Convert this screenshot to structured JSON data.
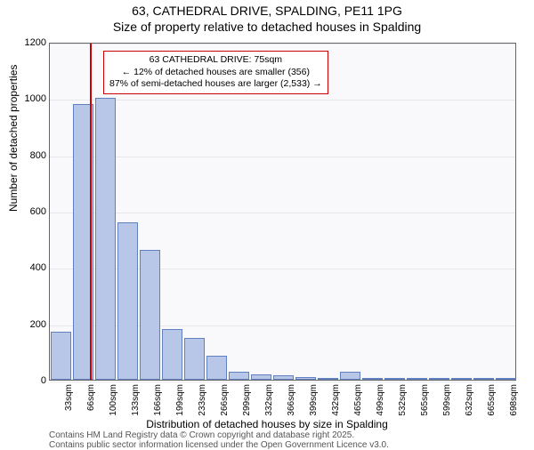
{
  "titles": {
    "line1": "63, CATHEDRAL DRIVE, SPALDING, PE11 1PG",
    "line2": "Size of property relative to detached houses in Spalding"
  },
  "ylabel": "Number of detached properties",
  "xlabel": "Distribution of detached houses by size in Spalding",
  "ylim": [
    0,
    1200
  ],
  "yticks": [
    0,
    200,
    400,
    600,
    800,
    1000,
    1200
  ],
  "categories": [
    "33sqm",
    "66sqm",
    "100sqm",
    "133sqm",
    "166sqm",
    "199sqm",
    "233sqm",
    "266sqm",
    "299sqm",
    "332sqm",
    "366sqm",
    "399sqm",
    "432sqm",
    "465sqm",
    "499sqm",
    "532sqm",
    "565sqm",
    "599sqm",
    "632sqm",
    "665sqm",
    "698sqm"
  ],
  "values": [
    170,
    980,
    1000,
    560,
    460,
    180,
    150,
    85,
    30,
    20,
    15,
    8,
    2,
    28,
    1,
    1,
    1,
    1,
    1,
    1,
    1
  ],
  "bar_fill": "#b8c7e8",
  "bar_stroke": "#6080c0",
  "grid_color": "#e8e8ec",
  "background": "#f9f9fb",
  "reference_line": {
    "position_index": 1.3,
    "color": "#cc0000"
  },
  "annotation": {
    "lines": [
      "63 CATHEDRAL DRIVE: 75sqm",
      "← 12% of detached houses are smaller (356)",
      "87% of semi-detached houses are larger (2,533) →"
    ],
    "border_color": "#cc0000"
  },
  "credits": {
    "line1": "Contains HM Land Registry data © Crown copyright and database right 2025.",
    "line2": "Contains public sector information licensed under the Open Government Licence v3.0."
  },
  "fonts": {
    "title": 14,
    "axis_label": 12,
    "tick": 11,
    "xtick": 10,
    "annot": 10.5,
    "credit": 10
  }
}
